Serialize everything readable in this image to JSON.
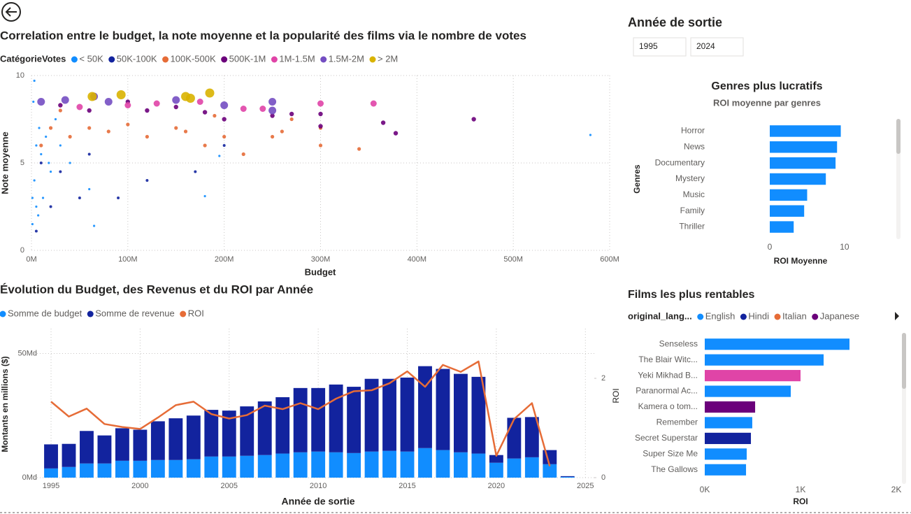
{
  "slicer": {
    "title": "Année de sortie",
    "from": 1995,
    "to": 2024
  },
  "chart_data": [
    {
      "type": "scatter",
      "title": "Correlation entre le budget, la note moyenne et la popularité des films via le nombre de votes",
      "legend_title": "CatégorieVotes",
      "x_label": "Budget",
      "y_label": "Note moyenne",
      "xlim": [
        0,
        600000000
      ],
      "xticks": [
        {
          "value": 0,
          "label": "0M"
        },
        {
          "value": 100000000,
          "label": "100M"
        },
        {
          "value": 200000000,
          "label": "200M"
        },
        {
          "value": 300000000,
          "label": "300M"
        },
        {
          "value": 400000000,
          "label": "400M"
        },
        {
          "value": 500000000,
          "label": "500M"
        },
        {
          "value": 600000000,
          "label": "600M"
        }
      ],
      "ylim": [
        0,
        10
      ],
      "yticks": [
        0,
        5,
        10
      ],
      "grid": true,
      "series": [
        {
          "name": "< 50K",
          "color": "#118DFF",
          "x": [
            2000000,
            5000000,
            3000000,
            1000000,
            8000000,
            10000000,
            15000000,
            20000000,
            30000000,
            40000000,
            60000000,
            1000000,
            5000000,
            12000000,
            25000000,
            580000000,
            195000000,
            180000000,
            65000000,
            3000000,
            7000000,
            18000000
          ],
          "values": [
            8.5,
            6,
            4,
            3,
            7,
            5.5,
            6.5,
            4.5,
            6,
            5,
            3.5,
            1.5,
            2.5,
            3,
            7.5,
            6.6,
            5.4,
            3.1,
            1.4,
            9.7,
            2,
            5
          ]
        },
        {
          "name": "50K-100K",
          "color": "#12239E",
          "x": [
            5000000,
            20000000,
            50000000,
            90000000,
            120000000,
            170000000,
            200000000,
            10000000,
            30000000,
            60000000
          ],
          "values": [
            1.1,
            2.5,
            3,
            3,
            4,
            4.5,
            6,
            5,
            4.5,
            5.5
          ]
        },
        {
          "name": "100K-500K",
          "color": "#E66C37",
          "x": [
            20000000,
            40000000,
            60000000,
            80000000,
            100000000,
            120000000,
            150000000,
            180000000,
            200000000,
            220000000,
            250000000,
            270000000,
            300000000,
            340000000,
            260000000,
            30000000,
            10000000,
            160000000,
            300000000,
            190000000
          ],
          "values": [
            7,
            6.5,
            7,
            6.8,
            7.2,
            6.5,
            7,
            6,
            6.5,
            5.5,
            6.5,
            7.5,
            6,
            5.8,
            6.8,
            8,
            6,
            6.8,
            7,
            7.7
          ]
        },
        {
          "name": "500K-1M",
          "color": "#6B007B",
          "x": [
            30000000,
            60000000,
            100000000,
            150000000,
            200000000,
            250000000,
            270000000,
            300000000,
            365000000,
            378000000,
            459000000,
            300000000,
            180000000,
            120000000
          ],
          "values": [
            8.3,
            8,
            8.5,
            8.2,
            7.5,
            7.7,
            7.8,
            7.8,
            7.3,
            6.7,
            7.5,
            7.1,
            7.9,
            8
          ]
        },
        {
          "name": "1M-1.5M",
          "color": "#E044A7",
          "x": [
            50000000,
            100000000,
            175000000,
            220000000,
            240000000,
            300000000,
            355000000,
            130000000
          ],
          "values": [
            8.2,
            8.3,
            8.5,
            8.1,
            8.1,
            8.4,
            8.4,
            8.4
          ]
        },
        {
          "name": "1.5M-2M",
          "color": "#744EC2",
          "x": [
            10000000,
            35000000,
            65000000,
            80000000,
            150000000,
            250000000,
            250000000,
            200000000
          ],
          "values": [
            8.5,
            8.6,
            8.8,
            8.5,
            8.6,
            8.5,
            8,
            8.3
          ]
        },
        {
          "name": "> 2M",
          "color": "#D9B300",
          "x": [
            63000000,
            93000000,
            160000000,
            185000000,
            165000000
          ],
          "values": [
            8.8,
            8.9,
            8.8,
            9,
            8.7
          ]
        }
      ]
    },
    {
      "type": "combo",
      "title": "Évolution du Budget, des Revenus et du ROI par Année",
      "x_label": "Année de sortie",
      "y_label": "Montants en millions ($)",
      "y2_label": "ROI",
      "x": [
        1995,
        1996,
        1997,
        1998,
        1999,
        2000,
        2001,
        2002,
        2003,
        2004,
        2005,
        2006,
        2007,
        2008,
        2009,
        2010,
        2011,
        2012,
        2013,
        2014,
        2015,
        2016,
        2017,
        2018,
        2019,
        2020,
        2021,
        2022,
        2023,
        2024
      ],
      "xlim": [
        1993.9,
        2025.5
      ],
      "xticks": [
        1995,
        2000,
        2005,
        2010,
        2015,
        2020,
        2025
      ],
      "ylim": [
        0,
        60
      ],
      "yticks": [
        {
          "value": 0,
          "label": "0Md"
        },
        {
          "value": 50,
          "label": "50Md"
        }
      ],
      "y2lim": [
        0,
        3
      ],
      "y2ticks": [
        0,
        2
      ],
      "grid": true,
      "stacked": true,
      "series": [
        {
          "name": "Somme de budget",
          "type": "bar",
          "color": "#118DFF",
          "values": [
            3.7,
            4.3,
            5.7,
            5.7,
            6.8,
            6.8,
            7.1,
            7.1,
            7.4,
            8.5,
            8.5,
            8.8,
            9.1,
            9.7,
            10.2,
            10.5,
            10.2,
            9.9,
            10.5,
            10.8,
            10.5,
            11.9,
            11.1,
            10.2,
            9.7,
            6.0,
            7.7,
            8.2,
            5.4,
            0.3
          ]
        },
        {
          "name": "Somme de revenue",
          "type": "bar",
          "color": "#12239E",
          "values": [
            9.7,
            9.3,
            13.1,
            11.3,
            13.1,
            12.5,
            15.6,
            16.8,
            17.6,
            18.8,
            18.5,
            19.9,
            21.6,
            22.7,
            25.9,
            25.6,
            27.3,
            26.7,
            29.3,
            29.0,
            29.8,
            33.0,
            32.7,
            31.6,
            30.9,
            3.1,
            16.4,
            16.2,
            5.7,
            0.3
          ]
        },
        {
          "name": "ROI",
          "type": "line",
          "axis": "y2",
          "color": "#E66C37",
          "values": [
            1.53,
            1.23,
            1.39,
            1.08,
            1.02,
            0.98,
            1.21,
            1.46,
            1.53,
            1.28,
            1.19,
            1.26,
            1.45,
            1.38,
            1.5,
            1.38,
            1.59,
            1.74,
            1.76,
            1.9,
            2.14,
            1.83,
            2.27,
            2.13,
            2.34,
            0.44,
            1.18,
            1.5,
            0.23,
            null
          ]
        }
      ]
    },
    {
      "type": "hbar",
      "title": "Genres plus lucratifs",
      "subtitle": "ROI moyenne par genres",
      "x_label": "ROI Moyenne",
      "y_label": "Genres",
      "categories": [
        "Horror",
        "News",
        "Documentary",
        "Mystery",
        "Music",
        "Family",
        "Thriller"
      ],
      "values": [
        9.5,
        9.0,
        8.8,
        7.5,
        5.0,
        4.6,
        3.2
      ],
      "color": "#118DFF",
      "xlim": [
        0,
        13
      ],
      "xticks": [
        0,
        10
      ]
    },
    {
      "type": "hbar",
      "title": "Films les plus rentables",
      "legend_title": "original_lang...",
      "legend": [
        {
          "name": "English",
          "color": "#118DFF"
        },
        {
          "name": "Hindi",
          "color": "#12239E"
        },
        {
          "name": "Italian",
          "color": "#E66C37"
        },
        {
          "name": "Japanese",
          "color": "#6B007B"
        }
      ],
      "x_label": "ROI",
      "categories": [
        "Senseless",
        "The Blair Witc...",
        "Yeki Mikhad B...",
        "Paranormal Ac...",
        "Kamera o tom...",
        "Remember",
        "Secret Superstar",
        "Super Size Me",
        "The Gallows"
      ],
      "values": [
        1511,
        1241,
        1000,
        898,
        526,
        496,
        482,
        438,
        431
      ],
      "colors": [
        "#118DFF",
        "#118DFF",
        "#E044A7",
        "#118DFF",
        "#6B007B",
        "#118DFF",
        "#12239E",
        "#118DFF",
        "#118DFF"
      ],
      "xlim": [
        0,
        2000
      ],
      "xticks": [
        {
          "value": 0,
          "label": "0K"
        },
        {
          "value": 1000,
          "label": "1K"
        },
        {
          "value": 2000,
          "label": "2K"
        }
      ]
    }
  ]
}
